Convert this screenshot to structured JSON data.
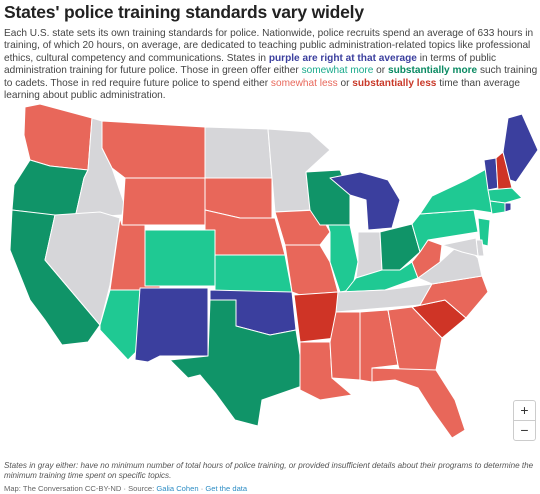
{
  "title": "States' police training standards vary widely",
  "description": {
    "part1": "Each U.S. state sets its own training standards for police. Nationwide, police recruits spend an average of 633 hours in training, of which 20 hours, on average, are dedicated to teaching public administration-related topics like professional ethics, cultural competency and communications. States in ",
    "purple_label": "purple are right at that average",
    "part2": " in terms of public administration training for future police. Those in green offer either ",
    "green_light_label": "somewhat more",
    "or1": " or ",
    "green_dark_label": "substantially more",
    "part3": " such training to cadets. Those in red require future police to spend either ",
    "red_light_label": "somewhat less",
    "or2": " or ",
    "red_dark_label": "substantially less",
    "part4": " time than average learning about public administration."
  },
  "colors": {
    "average": "#3b3f9e",
    "somewhat_more": "#1fc993",
    "substantially_more": "#109468",
    "somewhat_less": "#e8675a",
    "substantially_less": "#cf3426",
    "no_data": "#d6d6d9"
  },
  "states": {
    "WA": "somewhat_less",
    "OR": "substantially_more",
    "CA": "substantially_more",
    "ID": "no_data",
    "NV": "no_data",
    "MT": "somewhat_less",
    "WY": "somewhat_less",
    "UT": "somewhat_less",
    "AZ": "somewhat_more",
    "CO": "somewhat_more",
    "NM": "average",
    "ND": "no_data",
    "SD": "somewhat_less",
    "NE": "somewhat_less",
    "KS": "somewhat_more",
    "OK": "average",
    "TX": "substantially_more",
    "MN": "no_data",
    "IA": "somewhat_less",
    "MO": "somewhat_less",
    "AR": "substantially_less",
    "LA": "somewhat_less",
    "WI": "substantially_more",
    "IL": "somewhat_more",
    "MI": "average",
    "IN": "no_data",
    "OH": "substantially_more",
    "KY": "somewhat_more",
    "TN": "no_data",
    "MS": "somewhat_less",
    "AL": "somewhat_less",
    "GA": "somewhat_less",
    "FL": "somewhat_less",
    "SC": "substantially_less",
    "NC": "somewhat_less",
    "VA": "no_data",
    "WV": "somewhat_less",
    "PA": "somewhat_more",
    "NY": "somewhat_more",
    "VT": "average",
    "NH": "substantially_less",
    "ME": "average",
    "MA": "somewhat_more",
    "CT": "somewhat_more",
    "NJ": "somewhat_more",
    "MD": "no_data",
    "DE": "no_data",
    "RI": "average"
  },
  "zoom": {
    "in_label": "+",
    "out_label": "−"
  },
  "note": "States in gray either: have no minimum number of total hours of police training, or provided insufficient details about their programs to determine the minimum training time spent on specific topics.",
  "credit": {
    "text": "Map: The Conversation CC-BY-ND · Source: ",
    "source_link": "Galia Cohen",
    "separator": " · ",
    "data_link": "Get the data"
  }
}
